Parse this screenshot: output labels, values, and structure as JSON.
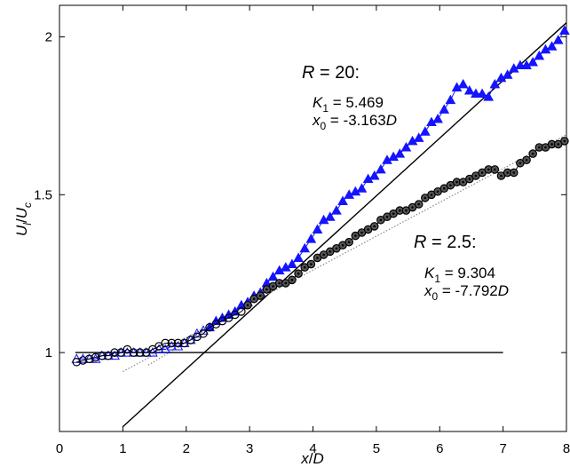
{
  "chart_data": {
    "type": "line",
    "xlabel_parts": [
      "x",
      "/",
      "D"
    ],
    "ylabel_parts": [
      "U",
      "l",
      "/",
      "U",
      "c"
    ],
    "xlim": [
      0,
      8
    ],
    "ylim": [
      0.75,
      2.1
    ],
    "x_ticks": [
      0,
      1,
      2,
      3,
      4,
      5,
      6,
      7,
      8
    ],
    "y_ticks": [
      1,
      1.5,
      2
    ],
    "x_tick_labels": [
      "0",
      "1",
      "2",
      "3",
      "4",
      "5",
      "6",
      "7",
      "8"
    ],
    "y_tick_labels": [
      "1",
      "1.5",
      "2"
    ],
    "grid": false,
    "annotations": [
      {
        "id": "r20",
        "heading": [
          "R",
          " = 20:"
        ],
        "line1": [
          "K",
          "1",
          " = 5.469"
        ],
        "line2": [
          "x",
          "0",
          " = -3.163",
          "D"
        ]
      },
      {
        "id": "r25",
        "heading": [
          "R",
          " = 2.5:"
        ],
        "line1": [
          "K",
          "1",
          " = 9.304"
        ],
        "line2": [
          "x",
          "0",
          " = -7.792",
          "D"
        ]
      }
    ],
    "series": [
      {
        "id": "r20-data",
        "marker": "triangle",
        "color": "#1414ff",
        "x": [
          0.27,
          0.37,
          0.47,
          0.57,
          0.67,
          0.77,
          0.87,
          0.97,
          1.07,
          1.17,
          1.27,
          1.37,
          1.47,
          1.57,
          1.67,
          1.77,
          1.87,
          1.97,
          2.07,
          2.17,
          2.27,
          2.37,
          2.47,
          2.57,
          2.67,
          2.77,
          2.87,
          2.97,
          3.07,
          3.17,
          3.27,
          3.37,
          3.47,
          3.57,
          3.67,
          3.77,
          3.87,
          3.97,
          4.07,
          4.17,
          4.27,
          4.37,
          4.47,
          4.57,
          4.67,
          4.77,
          4.87,
          4.97,
          5.07,
          5.17,
          5.27,
          5.37,
          5.47,
          5.57,
          5.67,
          5.77,
          5.87,
          5.97,
          6.07,
          6.17,
          6.27,
          6.37,
          6.47,
          6.57,
          6.67,
          6.77,
          6.87,
          6.97,
          7.07,
          7.17,
          7.27,
          7.37,
          7.47,
          7.57,
          7.67,
          7.77,
          7.87,
          7.97
        ],
        "values": [
          0.98,
          0.98,
          0.98,
          0.98,
          0.99,
          0.99,
          0.99,
          1.0,
          1.0,
          1.0,
          1.0,
          1.0,
          1.0,
          1.01,
          1.01,
          1.02,
          1.02,
          1.03,
          1.04,
          1.06,
          1.07,
          1.08,
          1.1,
          1.11,
          1.12,
          1.13,
          1.15,
          1.16,
          1.18,
          1.19,
          1.22,
          1.24,
          1.26,
          1.27,
          1.28,
          1.3,
          1.33,
          1.36,
          1.39,
          1.42,
          1.43,
          1.45,
          1.48,
          1.5,
          1.51,
          1.52,
          1.55,
          1.56,
          1.58,
          1.61,
          1.62,
          1.63,
          1.65,
          1.67,
          1.68,
          1.7,
          1.73,
          1.74,
          1.77,
          1.8,
          1.84,
          1.85,
          1.83,
          1.82,
          1.82,
          1.81,
          1.85,
          1.87,
          1.88,
          1.9,
          1.91,
          1.91,
          1.92,
          1.94,
          1.96,
          1.97,
          1.99,
          2.02
        ]
      },
      {
        "id": "r25-data",
        "marker": "circle",
        "color": "#000000",
        "x": [
          0.27,
          0.37,
          0.47,
          0.57,
          0.67,
          0.77,
          0.87,
          0.97,
          1.07,
          1.17,
          1.27,
          1.37,
          1.47,
          1.57,
          1.67,
          1.77,
          1.87,
          1.97,
          2.07,
          2.17,
          2.27,
          2.37,
          2.47,
          2.57,
          2.67,
          2.77,
          2.87,
          2.97,
          3.07,
          3.17,
          3.27,
          3.37,
          3.47,
          3.57,
          3.67,
          3.77,
          3.87,
          3.97,
          4.07,
          4.17,
          4.27,
          4.37,
          4.47,
          4.57,
          4.67,
          4.77,
          4.87,
          4.97,
          5.07,
          5.17,
          5.27,
          5.37,
          5.47,
          5.57,
          5.67,
          5.77,
          5.87,
          5.97,
          6.07,
          6.17,
          6.27,
          6.37,
          6.47,
          6.57,
          6.67,
          6.77,
          6.87,
          6.97,
          7.07,
          7.17,
          7.27,
          7.37,
          7.47,
          7.57,
          7.67,
          7.77,
          7.87,
          7.97
        ],
        "values": [
          0.97,
          0.975,
          0.98,
          0.985,
          0.99,
          0.99,
          1.0,
          1.0,
          1.01,
          1.0,
          1.0,
          1.0,
          1.01,
          1.02,
          1.03,
          1.03,
          1.03,
          1.03,
          1.04,
          1.05,
          1.06,
          1.08,
          1.09,
          1.1,
          1.11,
          1.12,
          1.13,
          1.15,
          1.17,
          1.18,
          1.2,
          1.21,
          1.22,
          1.22,
          1.23,
          1.25,
          1.27,
          1.28,
          1.3,
          1.31,
          1.32,
          1.33,
          1.34,
          1.35,
          1.37,
          1.38,
          1.39,
          1.4,
          1.42,
          1.43,
          1.44,
          1.45,
          1.45,
          1.46,
          1.47,
          1.49,
          1.5,
          1.51,
          1.52,
          1.53,
          1.54,
          1.54,
          1.55,
          1.56,
          1.57,
          1.58,
          1.58,
          1.56,
          1.57,
          1.57,
          1.6,
          1.61,
          1.63,
          1.65,
          1.65,
          1.66,
          1.66,
          1.67
        ]
      }
    ],
    "lines": [
      {
        "id": "fit-r20",
        "style": "solid",
        "color": "#000000",
        "x": [
          1.0,
          8.0
        ],
        "values": [
          0.765,
          2.045
        ]
      },
      {
        "id": "fit-r25",
        "style": "dotted",
        "color": "#888888",
        "x": [
          1.0,
          8.0
        ],
        "values": [
          0.94,
          1.69
        ]
      },
      {
        "id": "fit-r20-lower",
        "style": "dotted",
        "color": "#888888",
        "x": [
          1.4,
          3.2
        ],
        "values": [
          0.96,
          1.18
        ]
      },
      {
        "id": "reference-line",
        "style": "solid",
        "color": "#000000",
        "x": [
          0.25,
          7.0
        ],
        "values": [
          1.0,
          1.0
        ]
      }
    ]
  }
}
